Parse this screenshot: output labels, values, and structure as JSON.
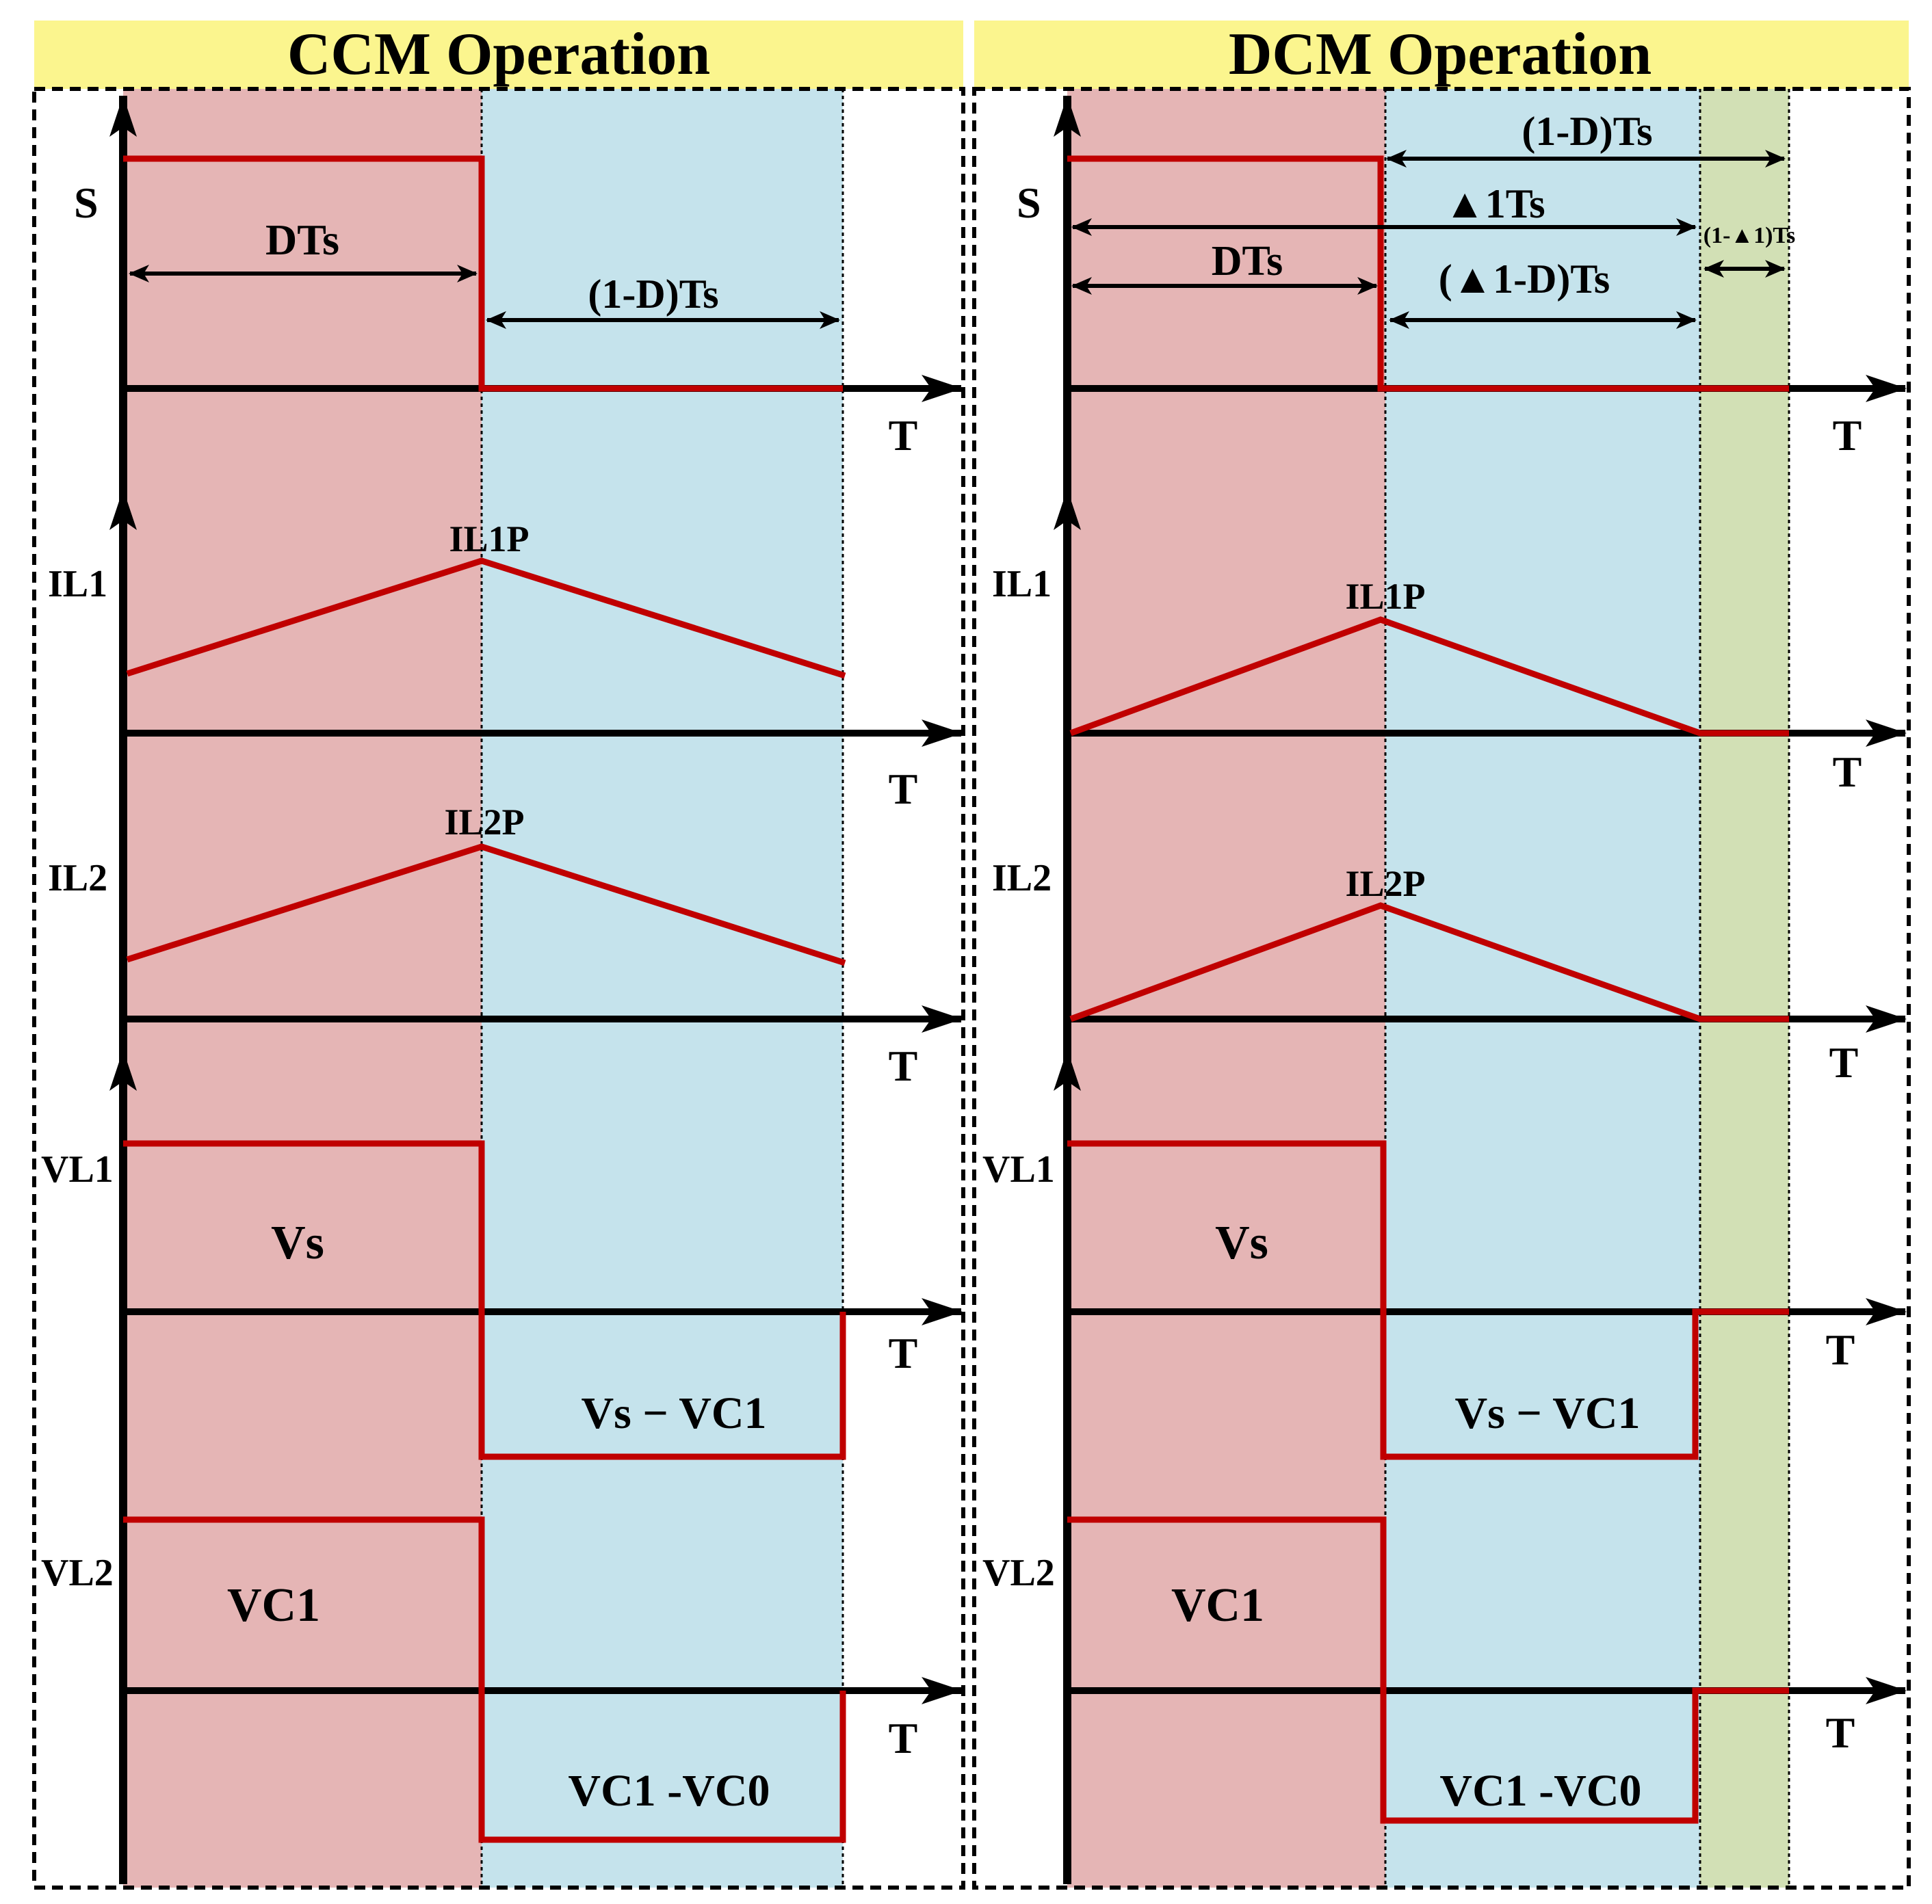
{
  "colors": {
    "title_bg": "#fbf58e",
    "on_region": "#e5b5b5",
    "off_region": "#c5e3ec",
    "idle_region": "#d2e0b5",
    "waveform": "#c00000",
    "axis": "#000000"
  },
  "ccm": {
    "title": "CCM Operation",
    "s_label": "S",
    "il1_label": "IL1",
    "il2_label": "IL2",
    "vl1_label": "VL1",
    "vl2_label": "VL2",
    "time_axis_label": "T",
    "dts": "DTs",
    "one_minus_d_ts": "(1-D)Ts",
    "il1_peak": "IL1P",
    "il2_peak": "IL2P",
    "vs": "Vs",
    "vs_minus_vc1": "Vs − VC1",
    "vc1": "VC1",
    "vc1_minus_vc0": "VC1 -VC0"
  },
  "dcm": {
    "title": "DCM Operation",
    "s_label": "S",
    "il1_label": "IL1",
    "il2_label": "IL2",
    "vl1_label": "VL1",
    "vl2_label": "VL2",
    "time_axis_label": "T",
    "one_minus_d_ts": "(1-D)Ts",
    "delta1_ts": "▲1Ts",
    "one_minus_delta1_ts": "(1-▲1)Ts",
    "dts": "DTs",
    "delta1_minus_d_ts": "(▲1-D)Ts",
    "il1_peak": "IL1P",
    "il2_peak": "IL2P",
    "vs": "Vs",
    "vs_minus_vc1": "Vs − VC1",
    "vc1": "VC1",
    "vc1_minus_vc0": "VC1 -VC0"
  }
}
